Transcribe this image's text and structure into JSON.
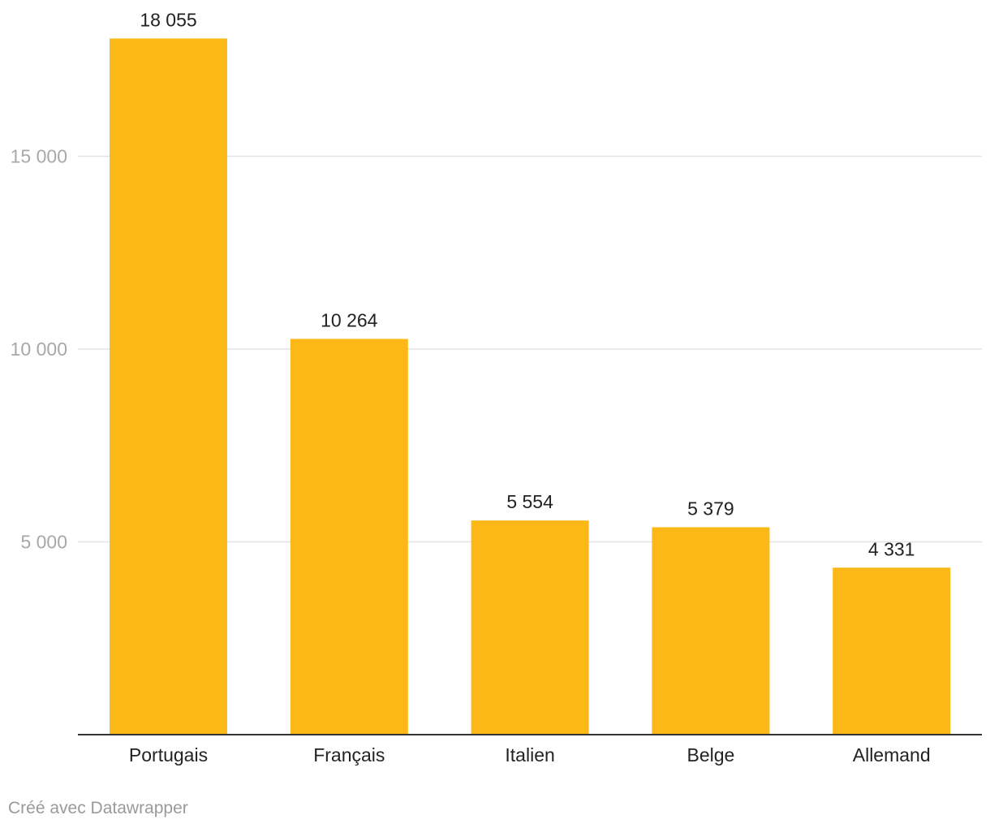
{
  "chart_data": {
    "type": "bar",
    "categories": [
      "Portugais",
      "Français",
      "Italien",
      "Belge",
      "Allemand"
    ],
    "values": [
      18055,
      10264,
      5554,
      5379,
      4331
    ],
    "value_labels": [
      "18 055",
      "10 264",
      "5 554",
      "5 379",
      "4 331"
    ],
    "y_ticks": [
      {
        "value": 5000,
        "label": "5 000"
      },
      {
        "value": 10000,
        "label": "10 000"
      },
      {
        "value": 15000,
        "label": "15 000"
      }
    ],
    "ylim": [
      0,
      19000
    ],
    "grid": true,
    "legend": "none",
    "bar_color": "#fbb817"
  },
  "footer": {
    "credit": "Créé avec Datawrapper"
  }
}
